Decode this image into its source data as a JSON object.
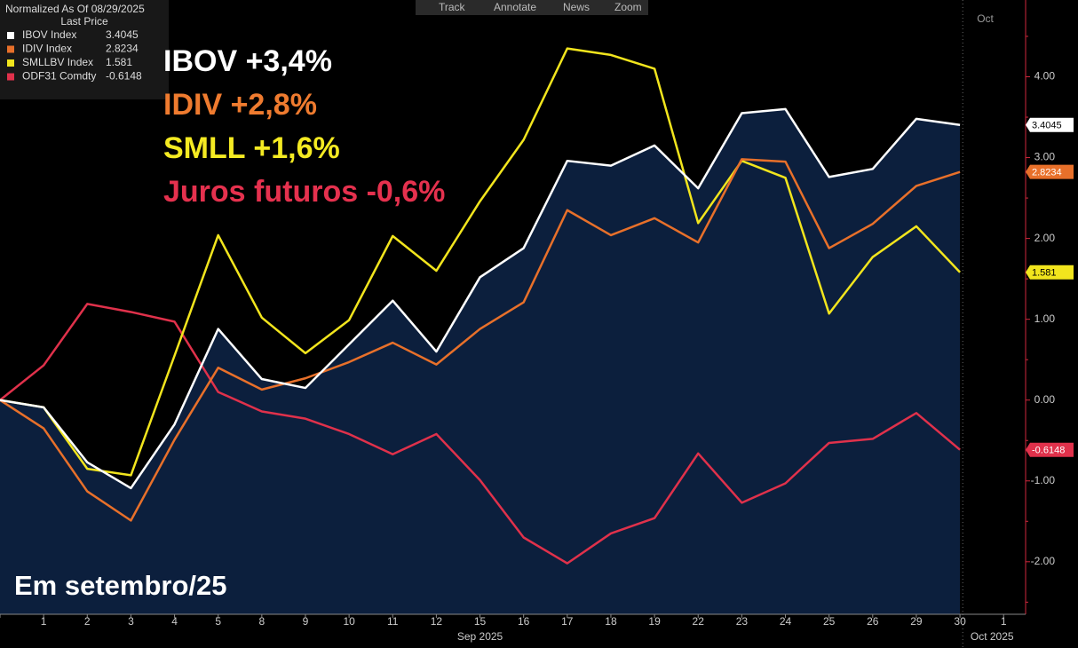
{
  "chart_data": {
    "type": "line",
    "toolbar": [
      "Track",
      "Annotate",
      "News",
      "Zoom"
    ],
    "legend_title": "Normalized As Of 08/29/2025",
    "legend_subtitle": "Last Price",
    "annotations": [
      {
        "text": "IBOV +3,4%",
        "color": "#ffffff"
      },
      {
        "text": "IDIV +2,8%",
        "color": "#ef7b2f"
      },
      {
        "text": "SMLL +1,6%",
        "color": "#f4ea22"
      },
      {
        "text": "Juros futuros -0,6%",
        "color": "#e5314e"
      }
    ],
    "caption": "Em setembro/25",
    "categories": [
      null,
      "1",
      "2",
      "3",
      "4",
      "5",
      "8",
      "9",
      "10",
      "11",
      "12",
      "15",
      "16",
      "17",
      "18",
      "19",
      "22",
      "23",
      "24",
      "25",
      "26",
      "29",
      "30",
      "1"
    ],
    "months": [
      {
        "label": "Sep 2025",
        "at": 11
      },
      {
        "label": "Oct 2025",
        "at": 23
      }
    ],
    "top_month_label": "Oct",
    "series": [
      {
        "name": "IBOV Index",
        "color": "#ffffff",
        "area": true,
        "area_color": "#0c1f3d",
        "values": [
          0,
          -0.09,
          -0.77,
          -1.09,
          -0.3,
          0.88,
          0.26,
          0.15,
          0.69,
          1.23,
          0.6,
          1.52,
          1.88,
          2.96,
          2.9,
          3.15,
          2.62,
          3.55,
          3.6,
          2.76,
          2.86,
          3.48,
          3.4045,
          null
        ]
      },
      {
        "name": "IDIV Index",
        "color": "#e8702a",
        "values": [
          0,
          -0.35,
          -1.13,
          -1.49,
          -0.49,
          0.4,
          0.13,
          0.27,
          0.47,
          0.71,
          0.44,
          0.88,
          1.21,
          2.35,
          2.04,
          2.25,
          1.95,
          2.98,
          2.95,
          1.88,
          2.18,
          2.65,
          2.8234,
          null
        ]
      },
      {
        "name": "SMLLBV Index",
        "color": "#f2e51d",
        "values": [
          0,
          -0.09,
          -0.85,
          -0.93,
          0.55,
          2.04,
          1.02,
          0.58,
          0.99,
          2.03,
          1.6,
          2.46,
          3.22,
          4.35,
          4.27,
          4.1,
          2.19,
          2.96,
          2.75,
          1.07,
          1.77,
          2.15,
          1.581,
          null
        ]
      },
      {
        "name": "ODF31 Comdty",
        "color": "#e0314b",
        "values": [
          0,
          0.43,
          1.19,
          1.09,
          0.97,
          0.1,
          -0.14,
          -0.23,
          -0.42,
          -0.67,
          -0.42,
          -0.99,
          -1.7,
          -2.02,
          -1.65,
          -1.46,
          -0.66,
          -1.27,
          -1.03,
          -0.53,
          -0.48,
          -0.16,
          -0.6148,
          null
        ]
      }
    ],
    "ylim": [
      -2.65,
      4.95
    ],
    "yticks": [
      {
        "value": 4,
        "label": "4.00"
      },
      {
        "value": 3,
        "label": "3.00"
      },
      {
        "value": 2,
        "label": "2.00"
      },
      {
        "value": 1,
        "label": "1.00"
      },
      {
        "value": 0,
        "label": "0.00"
      },
      {
        "value": -1,
        "label": "-1.00"
      },
      {
        "value": -2,
        "label": "-2.00"
      }
    ],
    "grid": false
  }
}
